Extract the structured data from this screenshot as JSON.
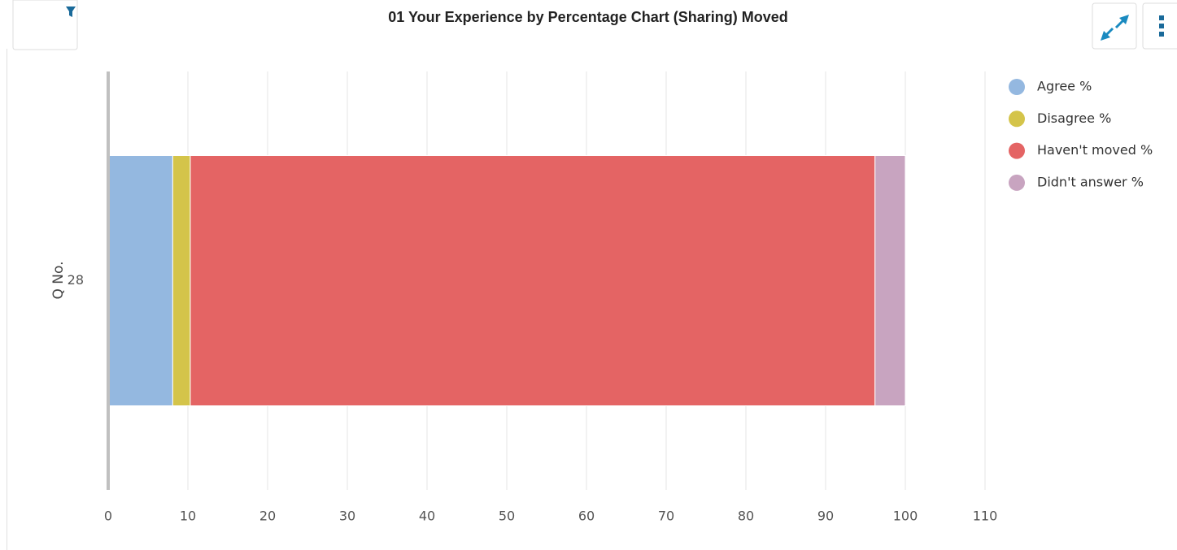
{
  "chart_data": {
    "type": "stacked_barh",
    "title": "01 Your Experience by Percentage Chart (Sharing) Moved",
    "y_label": "Q No.",
    "categories": [
      "28"
    ],
    "series": [
      {
        "name": "Agree %",
        "color": "#94b8e0",
        "values": [
          8.1
        ]
      },
      {
        "name": "Disagree %",
        "color": "#d4c44a",
        "values": [
          2.2
        ]
      },
      {
        "name": "Haven't moved %",
        "color": "#e46464",
        "values": [
          85.9
        ]
      },
      {
        "name": "Didn't answer %",
        "color": "#c8a4c0",
        "values": [
          3.8
        ]
      }
    ],
    "xlim": [
      0,
      110
    ],
    "xticks": [
      0,
      10,
      20,
      30,
      40,
      50,
      60,
      70,
      80,
      90,
      100,
      110
    ],
    "grid": true,
    "legend": "right"
  }
}
